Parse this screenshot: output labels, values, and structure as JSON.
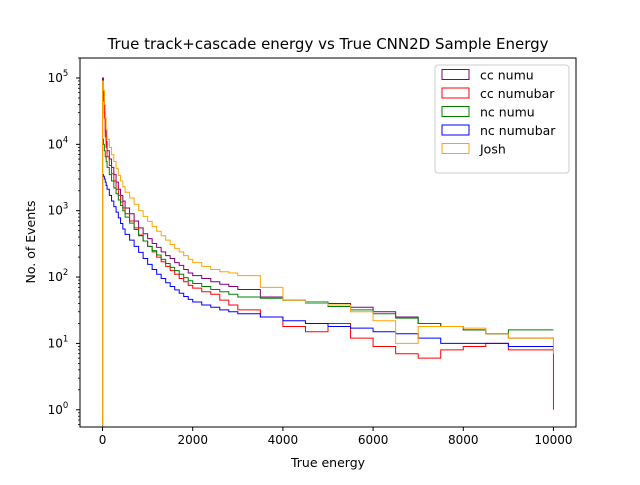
{
  "chart_data": {
    "type": "histogram-step",
    "title": "True track+cascade energy vs True CNN2D Sample Energy",
    "xlabel": "True energy",
    "ylabel": "No. of Events",
    "xlim": [
      -500,
      10500
    ],
    "ylim": [
      0.55,
      200000
    ],
    "yscale": "log",
    "x_ticks": [
      0,
      2000,
      4000,
      6000,
      8000,
      10000
    ],
    "y_ticks": [
      {
        "value": 1,
        "base": "10",
        "exp": "0"
      },
      {
        "value": 10,
        "base": "10",
        "exp": "1"
      },
      {
        "value": 100,
        "base": "10",
        "exp": "2"
      },
      {
        "value": 1000,
        "base": "10",
        "exp": "3"
      },
      {
        "value": 10000,
        "base": "10",
        "exp": "4"
      },
      {
        "value": 100000,
        "base": "10",
        "exp": "5"
      }
    ],
    "legend_position": "top-right",
    "grid": false,
    "series": [
      {
        "name": "cc numu",
        "color": "#800080",
        "edges": [
          0,
          20,
          40,
          60,
          80,
          100,
          150,
          200,
          250,
          300,
          350,
          400,
          450,
          500,
          600,
          700,
          800,
          900,
          1000,
          1100,
          1200,
          1300,
          1400,
          1500,
          1600,
          1700,
          1800,
          1900,
          2000,
          2200,
          2400,
          2600,
          2800,
          3000,
          3500,
          4000,
          4500,
          5000,
          5500,
          6000,
          6500,
          7000,
          7500,
          8000,
          8500,
          9000,
          10000
        ],
        "values": [
          100000,
          60000,
          30000,
          16000,
          11000,
          8000,
          6000,
          4500,
          3500,
          2700,
          2100,
          1700,
          1400,
          1100,
          900,
          700,
          550,
          450,
          380,
          320,
          280,
          240,
          210,
          190,
          165,
          150,
          130,
          115,
          105,
          95,
          85,
          78,
          72,
          65,
          50,
          45,
          42,
          40,
          35,
          30,
          25,
          20,
          18,
          16,
          14,
          12,
          8
        ]
      },
      {
        "name": "cc numubar",
        "color": "#ff0000",
        "edges": [
          0,
          20,
          40,
          60,
          80,
          100,
          150,
          200,
          250,
          300,
          350,
          400,
          450,
          500,
          600,
          700,
          800,
          900,
          1000,
          1100,
          1200,
          1300,
          1400,
          1500,
          1600,
          1700,
          1800,
          1900,
          2000,
          2200,
          2400,
          2600,
          2800,
          3000,
          3500,
          4000,
          4500,
          5000,
          5500,
          6000,
          6500,
          7000,
          7500,
          8000,
          8500,
          9000,
          10000
        ],
        "values": [
          80000,
          45000,
          25000,
          13000,
          9000,
          6500,
          4800,
          3600,
          2800,
          2100,
          1700,
          1350,
          1100,
          900,
          700,
          550,
          430,
          350,
          290,
          240,
          200,
          170,
          145,
          125,
          110,
          95,
          85,
          75,
          68,
          60,
          55,
          45,
          38,
          32,
          25,
          18,
          15,
          20,
          12,
          9,
          7,
          6,
          8,
          9,
          10,
          8,
          1
        ]
      },
      {
        "name": "nc numu",
        "color": "#008000",
        "edges": [
          0,
          20,
          40,
          60,
          80,
          100,
          150,
          200,
          250,
          300,
          350,
          400,
          450,
          500,
          600,
          700,
          800,
          900,
          1000,
          1100,
          1200,
          1300,
          1400,
          1500,
          1600,
          1700,
          1800,
          1900,
          2000,
          2200,
          2400,
          2600,
          2800,
          3000,
          3500,
          4000,
          4500,
          5000,
          5500,
          6000,
          6500,
          7000,
          7500,
          8000,
          8500,
          9000,
          10000
        ],
        "values": [
          12000,
          10000,
          8000,
          6500,
          5500,
          4500,
          3500,
          2800,
          2200,
          1800,
          1450,
          1200,
          1000,
          800,
          650,
          520,
          420,
          350,
          290,
          250,
          215,
          185,
          160,
          140,
          125,
          110,
          98,
          88,
          80,
          72,
          65,
          60,
          55,
          50,
          48,
          45,
          42,
          36,
          32,
          28,
          24,
          20,
          18,
          16,
          14,
          16,
          16
        ]
      },
      {
        "name": "nc numubar",
        "color": "#0000ff",
        "edges": [
          0,
          20,
          40,
          60,
          80,
          100,
          150,
          200,
          250,
          300,
          350,
          400,
          450,
          500,
          600,
          700,
          800,
          900,
          1000,
          1100,
          1200,
          1300,
          1400,
          1500,
          1600,
          1700,
          1800,
          1900,
          2000,
          2200,
          2400,
          2600,
          2800,
          3000,
          3500,
          4000,
          4500,
          5000,
          5500,
          6000,
          6500,
          7000,
          7500,
          8000,
          8500,
          9000,
          10000
        ],
        "values": [
          3500,
          3300,
          3000,
          2700,
          2400,
          2100,
          1700,
          1400,
          1150,
          950,
          780,
          640,
          530,
          440,
          360,
          290,
          235,
          190,
          155,
          130,
          110,
          95,
          82,
          72,
          64,
          57,
          51,
          46,
          42,
          38,
          35,
          32,
          30,
          28,
          25,
          22,
          20,
          18,
          17,
          15,
          14,
          12,
          10,
          10,
          10,
          9,
          8
        ]
      },
      {
        "name": "Josh",
        "color": "#ffa500",
        "edges": [
          0,
          20,
          40,
          60,
          80,
          100,
          150,
          200,
          250,
          300,
          350,
          400,
          450,
          500,
          600,
          700,
          800,
          900,
          1000,
          1100,
          1200,
          1300,
          1400,
          1500,
          1600,
          1700,
          1800,
          1900,
          2000,
          2200,
          2400,
          2600,
          2800,
          3000,
          3500,
          4000,
          4500,
          5000,
          5500,
          6000,
          6500,
          7000,
          7500,
          8000,
          8500,
          9000,
          10000
        ],
        "values": [
          90000,
          65000,
          40000,
          25000,
          17000,
          12000,
          9000,
          7000,
          5500,
          4300,
          3400,
          2800,
          2300,
          1900,
          1550,
          1250,
          1000,
          820,
          690,
          580,
          490,
          420,
          360,
          310,
          270,
          240,
          210,
          185,
          165,
          145,
          130,
          120,
          115,
          105,
          70,
          45,
          40,
          38,
          30,
          22,
          10,
          18,
          18,
          17,
          14,
          12,
          7
        ]
      }
    ]
  }
}
